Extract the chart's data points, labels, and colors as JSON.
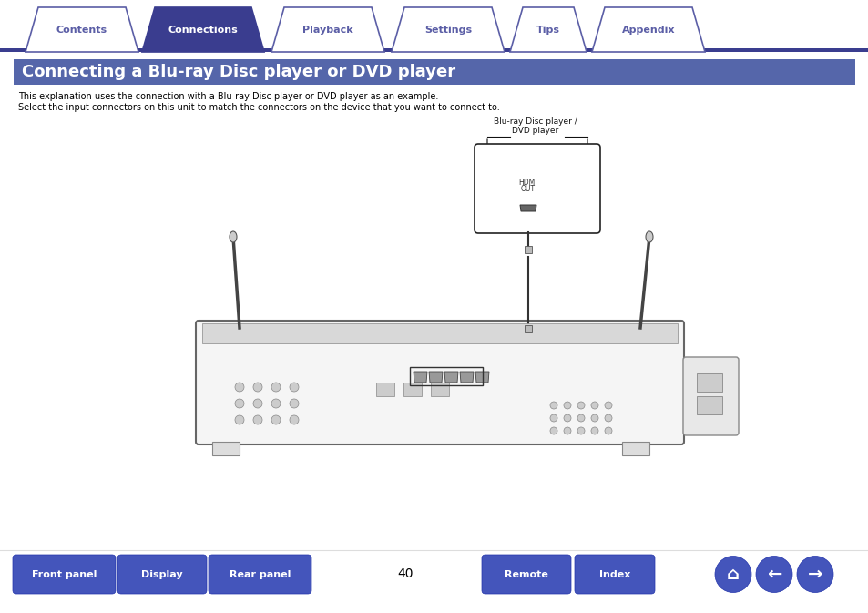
{
  "bg_color": "#ffffff",
  "tab_line_color": "#3a3d8f",
  "tab_active_color": "#3a3d8f",
  "tab_inactive_bg": "#ffffff",
  "tab_border_color": "#5b5ea6",
  "tabs": [
    "Contents",
    "Connections",
    "Playback",
    "Settings",
    "Tips",
    "Appendix"
  ],
  "active_tab": 1,
  "header_bg": "#5566aa",
  "header_text": "Connecting a Blu-ray Disc player or DVD player",
  "header_text_color": "#ffffff",
  "body_text_line1": "This explanation uses the connection with a Blu-ray Disc player or DVD player as an example.",
  "body_text_line2": "Select the input connectors on this unit to match the connectors on the device that you want to connect to.",
  "body_text_color": "#000000",
  "label_bluray_line1": "Blu-ray Disc player /",
  "label_bluray_line2": "DVD player",
  "hdmi_label": "HDMI\nOUT",
  "bottom_buttons": [
    "Front panel",
    "Display",
    "Rear panel",
    "Remote",
    "Index"
  ],
  "page_number": "40",
  "btn_color": "#4455bb",
  "btn_text_color": "#ffffff",
  "device_line_color": "#333333",
  "receiver_fill": "#f5f5f5",
  "receiver_stroke": "#666666"
}
